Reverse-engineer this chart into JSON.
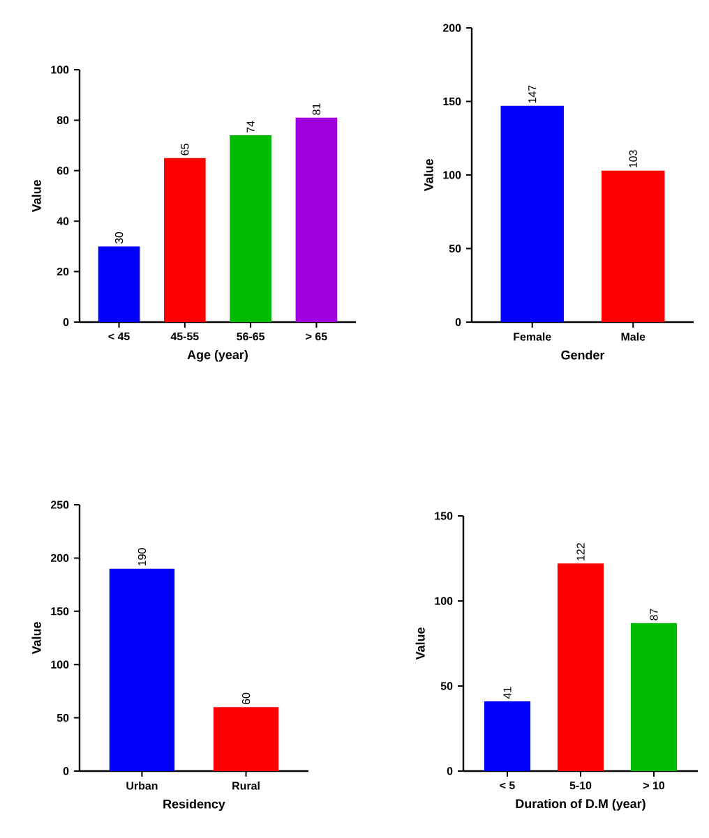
{
  "chart_data": [
    {
      "type": "bar",
      "xlabel": "Age (year)",
      "ylabel": "Value",
      "categories": [
        "< 45",
        "45-55",
        "56-65",
        "> 65"
      ],
      "values": [
        30,
        65,
        74,
        81
      ],
      "colors": [
        "#0000ff",
        "#ff0000",
        "#00bb00",
        "#a000e0"
      ],
      "ylim": [
        0,
        100
      ],
      "yticks": [
        0,
        20,
        40,
        60,
        80,
        100
      ],
      "data_labels": true
    },
    {
      "type": "bar",
      "xlabel": "Gender",
      "ylabel": "Value",
      "categories": [
        "Female",
        "Male"
      ],
      "values": [
        147,
        103
      ],
      "colors": [
        "#0000ff",
        "#ff0000"
      ],
      "ylim": [
        0,
        200
      ],
      "yticks": [
        0,
        50,
        100,
        150,
        200
      ],
      "data_labels": true
    },
    {
      "type": "bar",
      "xlabel": "Residency",
      "ylabel": "Value",
      "categories": [
        "Urban",
        "Rural"
      ],
      "values": [
        190,
        60
      ],
      "colors": [
        "#0000ff",
        "#ff0000"
      ],
      "ylim": [
        0,
        250
      ],
      "yticks": [
        0,
        50,
        100,
        150,
        200,
        250
      ],
      "data_labels": true
    },
    {
      "type": "bar",
      "xlabel": "Duration of D.M (year)",
      "ylabel": "Value",
      "categories": [
        "< 5",
        "5-10",
        "> 10"
      ],
      "values": [
        41,
        122,
        87
      ],
      "colors": [
        "#0000ff",
        "#ff0000",
        "#00bb00"
      ],
      "ylim": [
        0,
        150
      ],
      "yticks": [
        0,
        50,
        100,
        150
      ],
      "data_labels": true
    }
  ]
}
